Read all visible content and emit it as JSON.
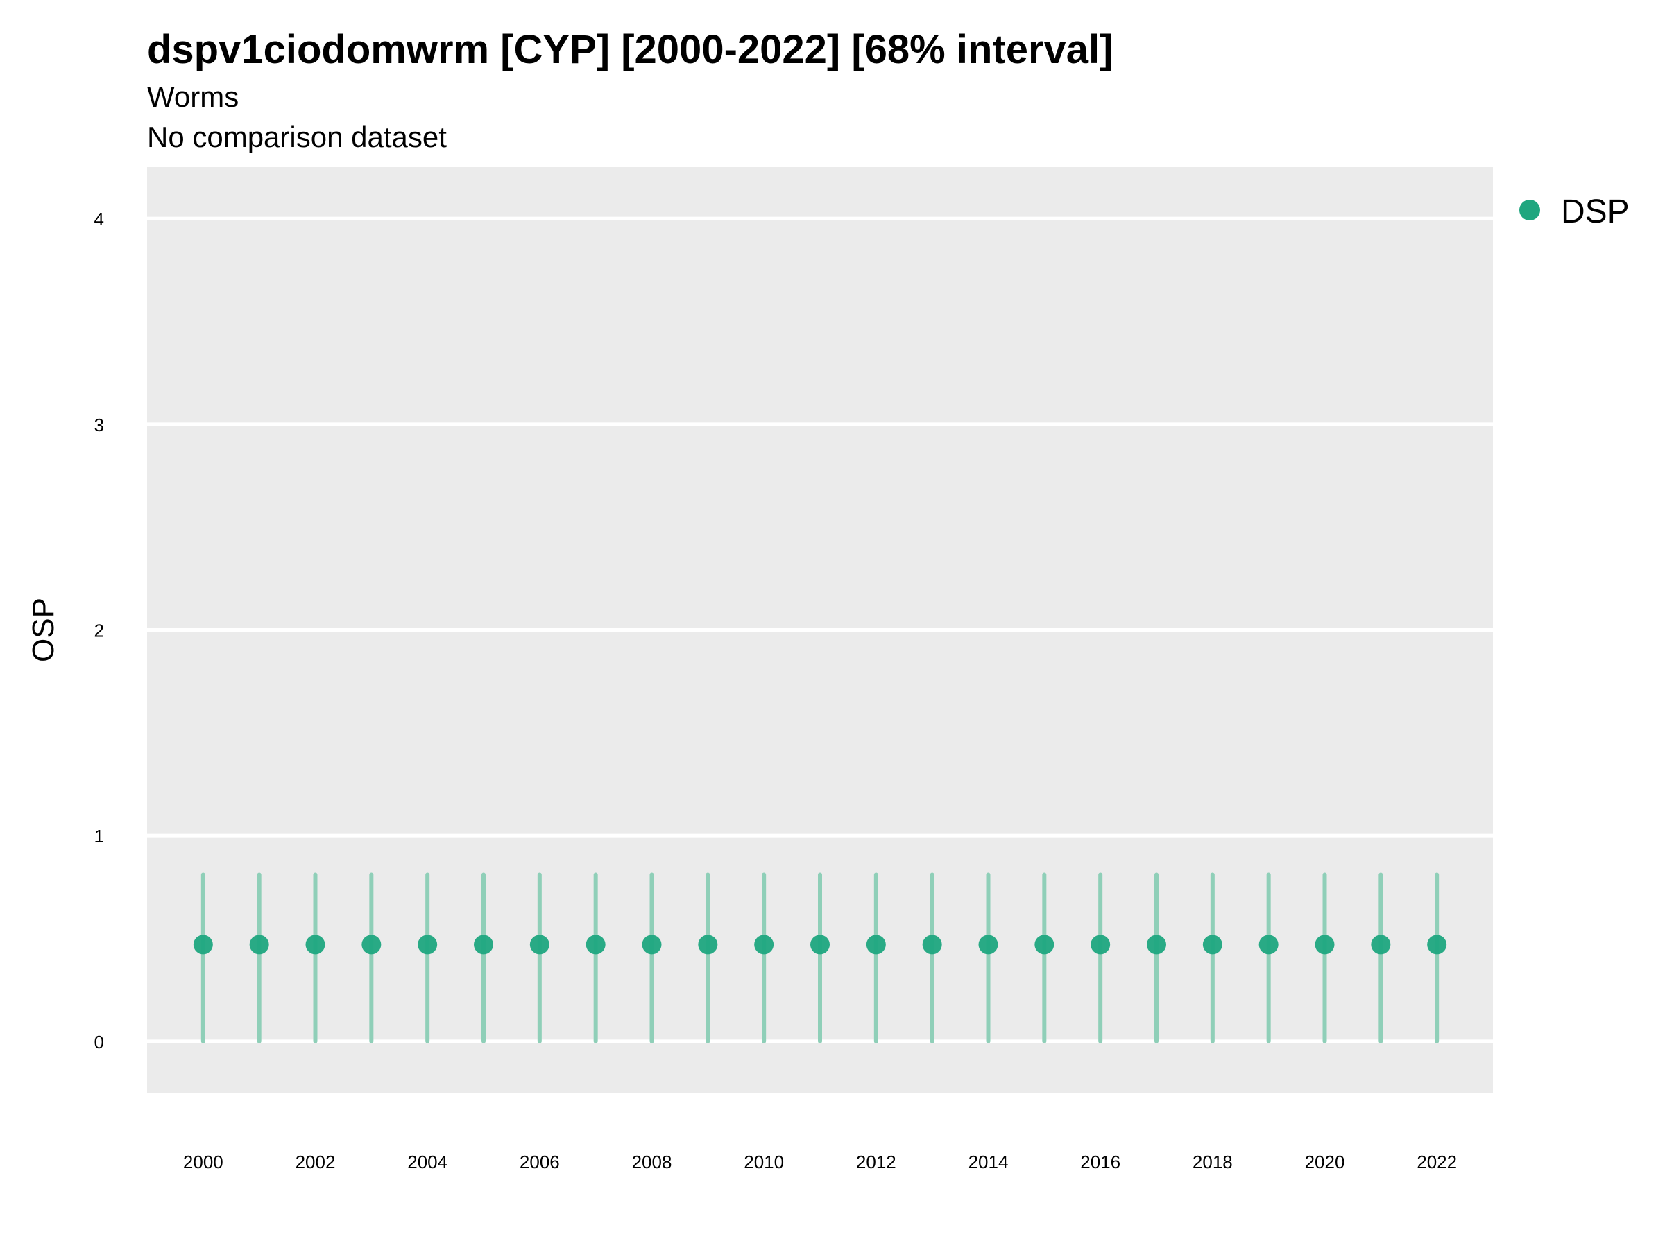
{
  "header": {
    "title": "dspv1ciodomwrm [CYP] [2000-2022] [68% interval]",
    "subtitle": "Worms",
    "subtitle2": "No comparison dataset"
  },
  "colors": {
    "panel_background": "#ebebeb",
    "grid": "#ffffff",
    "series": "#1fa67f",
    "interval": "#8fcfb8"
  },
  "chart_data": {
    "type": "scatter",
    "title": "dspv1ciodomwrm [CYP] [2000-2022] [68% interval]",
    "subtitle": "Worms",
    "caption": "No comparison dataset",
    "xlabel": "",
    "ylabel": "OSP",
    "xlim": [
      1999,
      2023
    ],
    "ylim": [
      -0.25,
      4.25
    ],
    "x_ticks": [
      2000,
      2002,
      2004,
      2006,
      2008,
      2010,
      2012,
      2014,
      2016,
      2018,
      2020,
      2022
    ],
    "y_ticks": [
      0,
      1,
      2,
      3,
      4
    ],
    "grid": true,
    "legend_position": "right",
    "series": [
      {
        "name": "DSP",
        "x": [
          2000,
          2001,
          2002,
          2003,
          2004,
          2005,
          2006,
          2007,
          2008,
          2009,
          2010,
          2011,
          2012,
          2013,
          2014,
          2015,
          2016,
          2017,
          2018,
          2019,
          2020,
          2021,
          2022
        ],
        "y": [
          0.47,
          0.47,
          0.47,
          0.47,
          0.47,
          0.47,
          0.47,
          0.47,
          0.47,
          0.47,
          0.47,
          0.47,
          0.47,
          0.47,
          0.47,
          0.47,
          0.47,
          0.47,
          0.47,
          0.47,
          0.47,
          0.47,
          0.47
        ],
        "lower": [
          0,
          0,
          0,
          0,
          0,
          0,
          0,
          0,
          0,
          0,
          0,
          0,
          0,
          0,
          0,
          0,
          0,
          0,
          0,
          0,
          0,
          0,
          0
        ],
        "upper": [
          0.81,
          0.81,
          0.81,
          0.81,
          0.81,
          0.81,
          0.81,
          0.81,
          0.81,
          0.81,
          0.81,
          0.81,
          0.81,
          0.81,
          0.81,
          0.81,
          0.81,
          0.81,
          0.81,
          0.81,
          0.81,
          0.81,
          0.81
        ]
      }
    ]
  }
}
